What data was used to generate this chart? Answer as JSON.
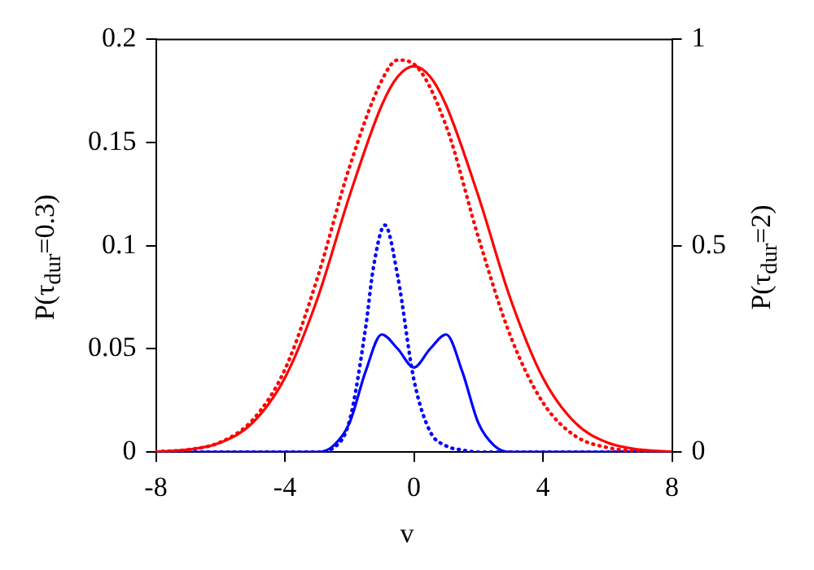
{
  "chart_data": {
    "type": "line",
    "xlabel": "v",
    "ylabel": "P(τ$_{dur}$=0.3)",
    "y2label": "P(τ$_{dur}$=2)",
    "xlim": [
      -8,
      8
    ],
    "xticks": [
      -8,
      -4,
      0,
      4,
      8
    ],
    "ylim": [
      0,
      0.2
    ],
    "yticks": [
      0,
      0.05,
      0.1,
      0.15,
      0.2
    ],
    "y2lim": [
      0,
      1
    ],
    "y2ticks": [
      0,
      0.5,
      1
    ],
    "marker": "none",
    "series": [
      {
        "color": "#ff0000",
        "line_style": "solid",
        "axis": "y2",
        "x": [
          -8,
          -7,
          -6,
          -5,
          -4,
          -3,
          -2,
          -1,
          -0.5,
          0,
          0.5,
          1,
          2,
          3,
          4,
          5,
          6,
          7,
          8
        ],
        "values": [
          0.001,
          0.006,
          0.023,
          0.071,
          0.18,
          0.37,
          0.62,
          0.84,
          0.91,
          0.935,
          0.91,
          0.84,
          0.62,
          0.37,
          0.18,
          0.071,
          0.023,
          0.006,
          0.001
        ]
      },
      {
        "color": "#ff0000",
        "line_style": "dotted",
        "axis": "y2",
        "x": [
          -8,
          -7,
          -6,
          -5,
          -4,
          -3,
          -2,
          -1,
          -0.5,
          0,
          1,
          2,
          3,
          4,
          5,
          6,
          7,
          8
        ],
        "values": [
          0.001,
          0.006,
          0.024,
          0.078,
          0.2,
          0.42,
          0.69,
          0.9,
          0.95,
          0.94,
          0.79,
          0.52,
          0.28,
          0.12,
          0.039,
          0.011,
          0.002,
          0
        ]
      },
      {
        "color": "#0000ff",
        "line_style": "solid",
        "axis": "y",
        "x": [
          -8,
          -3,
          -2.5,
          -2,
          -1.5,
          -1,
          -0.5,
          0,
          0.5,
          1,
          1.5,
          2,
          2.5,
          3,
          8
        ],
        "values": [
          0,
          0,
          0.003,
          0.014,
          0.039,
          0.057,
          0.05,
          0.041,
          0.05,
          0.057,
          0.039,
          0.014,
          0.003,
          0,
          0
        ]
      },
      {
        "color": "#0000ff",
        "line_style": "dotted",
        "axis": "y",
        "x": [
          -8,
          -3,
          -2.5,
          -2,
          -1.5,
          -1.25,
          -0.9,
          -0.5,
          0,
          0.5,
          1,
          1.5,
          2,
          8
        ],
        "values": [
          0,
          0,
          0.002,
          0.015,
          0.06,
          0.09,
          0.11,
          0.085,
          0.035,
          0.01,
          0.003,
          0.001,
          0,
          0
        ]
      }
    ]
  }
}
